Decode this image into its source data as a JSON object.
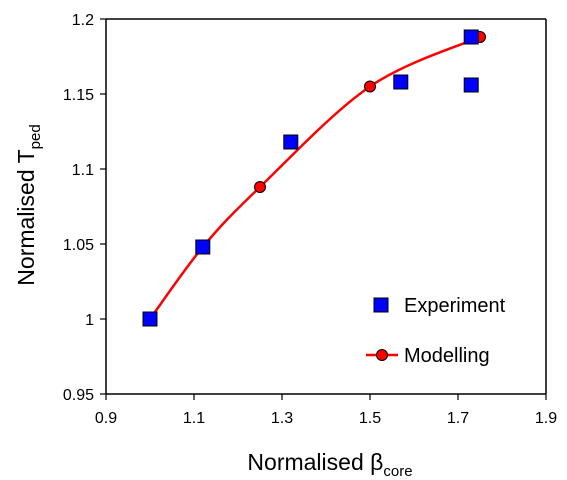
{
  "chart_data": {
    "type": "scatter",
    "xlabel": {
      "main": "Normalised ",
      "symbol": "β",
      "sub": "core"
    },
    "ylabel": {
      "main": "Normalised T",
      "sub": "ped"
    },
    "xlim": [
      0.9,
      1.9
    ],
    "ylim": [
      0.95,
      1.2
    ],
    "xticks": [
      0.9,
      1.1,
      1.3,
      1.5,
      1.7,
      1.9
    ],
    "xtick_labels": [
      "0.9",
      "1.1",
      "1.3",
      "1.5",
      "1.7",
      "1.9"
    ],
    "yticks": [
      0.95,
      1.0,
      1.05,
      1.1,
      1.15,
      1.2
    ],
    "ytick_labels": [
      "0.95",
      "1",
      "1.05",
      "1.1",
      "1.15",
      "1.2"
    ],
    "grid": false,
    "legend_position": "bottom-right",
    "series": [
      {
        "name": "Experiment",
        "marker": "square",
        "color": "#0000ff",
        "x": [
          1.0,
          1.12,
          1.32,
          1.57,
          1.73,
          1.73
        ],
        "y": [
          1.0,
          1.048,
          1.118,
          1.158,
          1.188,
          1.156
        ]
      },
      {
        "name": "Modelling",
        "marker": "circle-line",
        "color": "#ff0000",
        "x": [
          1.0,
          1.12,
          1.25,
          1.5,
          1.75
        ],
        "y": [
          1.0,
          1.048,
          1.088,
          1.155,
          1.188
        ]
      }
    ]
  }
}
